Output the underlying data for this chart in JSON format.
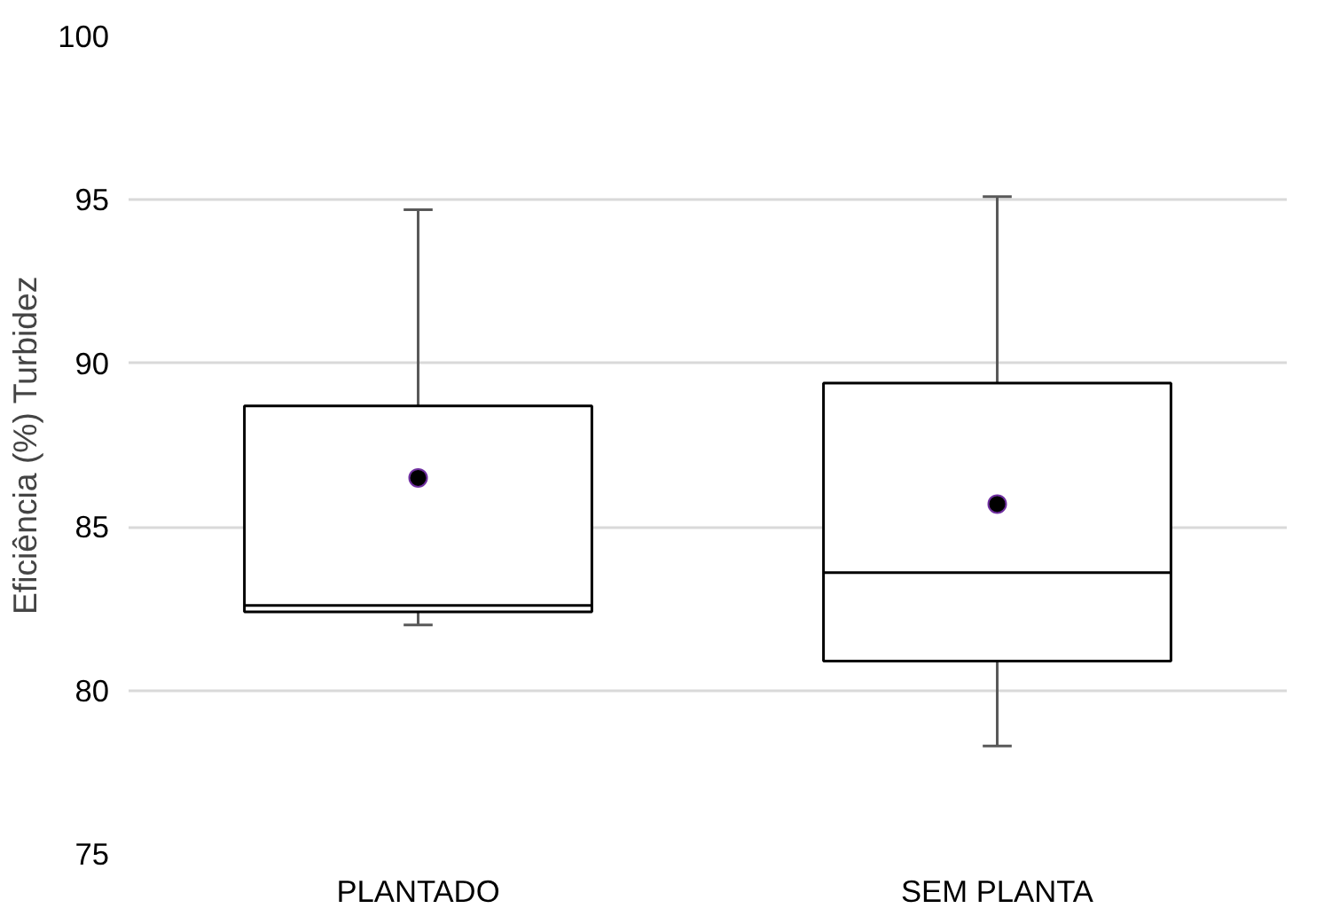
{
  "chart_data": {
    "type": "box",
    "ylabel": "Eficiência (%) Turbidez",
    "categories": [
      "PLANTADO",
      "SEM PLANTA"
    ],
    "boxes": [
      {
        "low": 82.0,
        "q1": 82.4,
        "median": 82.6,
        "q3": 88.7,
        "high": 94.7,
        "mean": 86.5
      },
      {
        "low": 78.3,
        "q1": 80.9,
        "median": 83.6,
        "q3": 89.4,
        "high": 95.1,
        "mean": 85.7
      }
    ],
    "color": "#000000",
    "ylim": [
      75,
      100
    ],
    "yticks": [
      75,
      80,
      85,
      90,
      95,
      100
    ],
    "grid": "y",
    "marker": "circle"
  }
}
